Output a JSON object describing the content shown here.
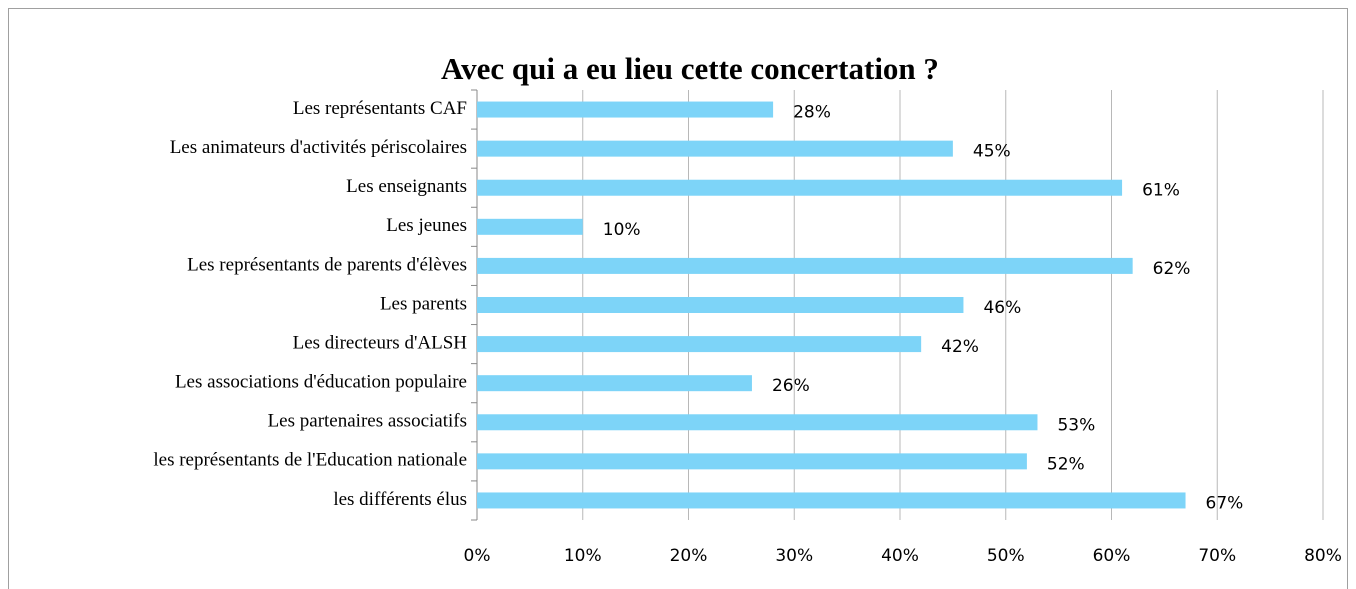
{
  "chart_data": {
    "type": "bar",
    "orientation": "horizontal",
    "title": "Avec qui a eu lieu cette concertation ?",
    "categories": [
      "Les représentants CAF",
      "Les animateurs d'activités périscolaires",
      "Les enseignants",
      "Les jeunes",
      "Les représentants de parents d'élèves",
      "Les parents",
      "Les directeurs d'ALSH",
      "Les associations d'éducation populaire",
      "Les partenaires associatifs",
      "les représentants de l'Education nationale",
      "les différents élus"
    ],
    "values": [
      28,
      45,
      61,
      10,
      62,
      46,
      42,
      26,
      53,
      52,
      67
    ],
    "value_labels": [
      "28%",
      "45%",
      "61%",
      "10%",
      "62%",
      "46%",
      "42%",
      "26%",
      "53%",
      "52%",
      "67%"
    ],
    "color": "#7dd4f8",
    "xlim": [
      0,
      80
    ],
    "xticks": [
      {
        "value": 0,
        "label": "0%"
      },
      {
        "value": 10,
        "label": "10%"
      },
      {
        "value": 20,
        "label": "20%"
      },
      {
        "value": 30,
        "label": "30%"
      },
      {
        "value": 40,
        "label": "40%"
      },
      {
        "value": 50,
        "label": "50%"
      },
      {
        "value": 60,
        "label": "60%"
      },
      {
        "value": 70,
        "label": "70%"
      },
      {
        "value": 80,
        "label": "80%"
      }
    ],
    "grid": true
  }
}
